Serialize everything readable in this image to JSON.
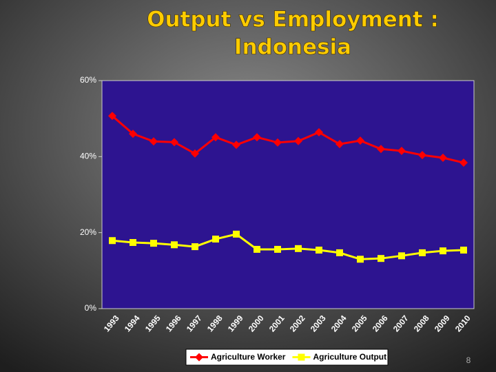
{
  "chart_data": {
    "type": "line",
    "title_lines": [
      "Output vs Employment :",
      "Indonesia"
    ],
    "categories": [
      "1993",
      "1994",
      "1995",
      "1996",
      "1997",
      "1998",
      "1999",
      "2000",
      "2001",
      "2002",
      "2003",
      "2004",
      "2005",
      "2006",
      "2007",
      "2008",
      "2009",
      "2010"
    ],
    "series": [
      {
        "name": "Agriculture Worker",
        "color": "#ff0000",
        "marker": "diamond",
        "values": [
          50.7,
          46.0,
          44.0,
          43.8,
          40.8,
          45.1,
          43.1,
          45.1,
          43.7,
          44.1,
          46.4,
          43.3,
          44.2,
          42.0,
          41.5,
          40.4,
          39.7,
          38.4
        ]
      },
      {
        "name": "Agriculture Output",
        "color": "#ffff00",
        "marker": "square",
        "values": [
          17.9,
          17.4,
          17.2,
          16.8,
          16.3,
          18.3,
          19.6,
          15.6,
          15.6,
          15.8,
          15.4,
          14.7,
          13.0,
          13.2,
          13.9,
          14.7,
          15.2,
          15.4
        ]
      }
    ],
    "ylim": [
      0,
      60
    ],
    "yticks": [
      {
        "value": 0,
        "label": "0%"
      },
      {
        "value": 20,
        "label": "20%"
      },
      {
        "value": 40,
        "label": "40%"
      },
      {
        "value": 60,
        "label": "60%"
      }
    ],
    "grid": false,
    "legend": "bottom"
  },
  "page_number": "8"
}
